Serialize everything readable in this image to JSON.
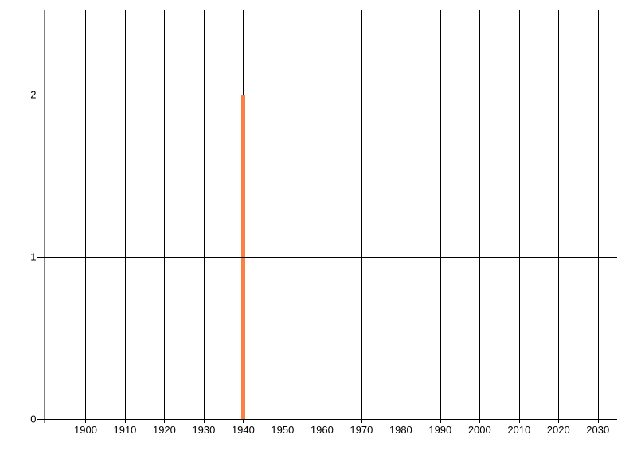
{
  "chart_data": {
    "type": "bar",
    "title": "",
    "xlabel": "",
    "ylabel": "",
    "x_ticks": [
      1900,
      1910,
      1920,
      1930,
      1940,
      1950,
      1960,
      1970,
      1980,
      1990,
      2000,
      2010,
      2020,
      2030
    ],
    "x_tick_labels": [
      "1900",
      "1910",
      "1920",
      "1930",
      "1940",
      "1950",
      "1960",
      "1970",
      "1980",
      "1990",
      "2000",
      "2010",
      "2020",
      "2030"
    ],
    "y_ticks": [
      0,
      1,
      2
    ],
    "y_tick_labels": [
      "0",
      "1",
      "2"
    ],
    "bars": [
      {
        "x": 1940,
        "value": 2
      }
    ],
    "xlim": [
      1889.6,
      2034.9
    ],
    "ylim": [
      0,
      2.52
    ],
    "grid": "both",
    "legend": "none",
    "bar_color": "#fa8044",
    "grid_color": "#000000",
    "axis_color": "#000000",
    "label_color": "#000000",
    "background": "#ffffff"
  }
}
